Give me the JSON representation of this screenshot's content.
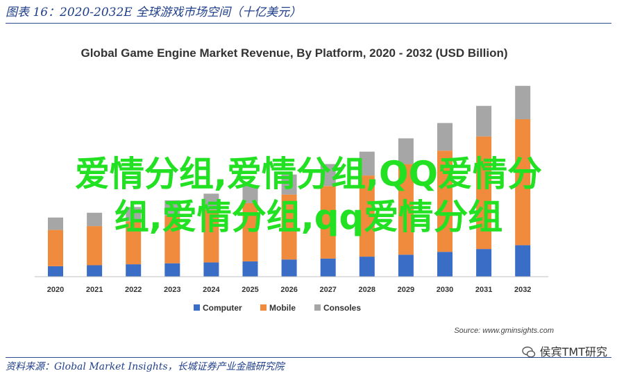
{
  "figure_title": "图表 16：2020-2032E 全球游戏市场空间（十亿美元）",
  "source_note": "资料来源：Global Market Insights，长城证券产业金融研究院",
  "overlay": {
    "line1": "爱情分组,爱情分组,QQ爱情分",
    "line2": "组,爱情分组,qq爱情分组"
  },
  "watermark": {
    "text": "侯宾TMT研究",
    "icon": "wechat-icon"
  },
  "colors": {
    "computer": "#3a6ec6",
    "mobile": "#f08a3c",
    "consoles": "#a6a6a6",
    "title_blue": "#1f3f8a",
    "axis": "#bfbfbf"
  },
  "chart_data": {
    "type": "bar",
    "stacked": true,
    "title": "Global Game Engine Market Revenue, By Platform, 2020 - 2032 (USD Billion)",
    "source": "Source: www.gminsights.com",
    "categories": [
      "2020",
      "2021",
      "2022",
      "2023",
      "2024",
      "2025",
      "2026",
      "2027",
      "2028",
      "2029",
      "2030",
      "2031",
      "2032"
    ],
    "series": [
      {
        "name": "Computer",
        "values": [
          1.1,
          1.2,
          1.3,
          1.4,
          1.5,
          1.6,
          1.8,
          1.9,
          2.1,
          2.3,
          2.6,
          2.9,
          3.3
        ]
      },
      {
        "name": "Mobile",
        "values": [
          3.8,
          4.1,
          4.5,
          5.0,
          5.5,
          6.1,
          6.8,
          7.6,
          8.5,
          9.5,
          10.6,
          11.8,
          13.2
        ]
      },
      {
        "name": "Consoles",
        "values": [
          1.3,
          1.4,
          1.5,
          1.6,
          1.7,
          1.9,
          2.1,
          2.3,
          2.5,
          2.7,
          2.9,
          3.2,
          3.5
        ]
      }
    ],
    "ylim": [
      0,
      21
    ],
    "legend_position": "bottom",
    "grid": false
  }
}
